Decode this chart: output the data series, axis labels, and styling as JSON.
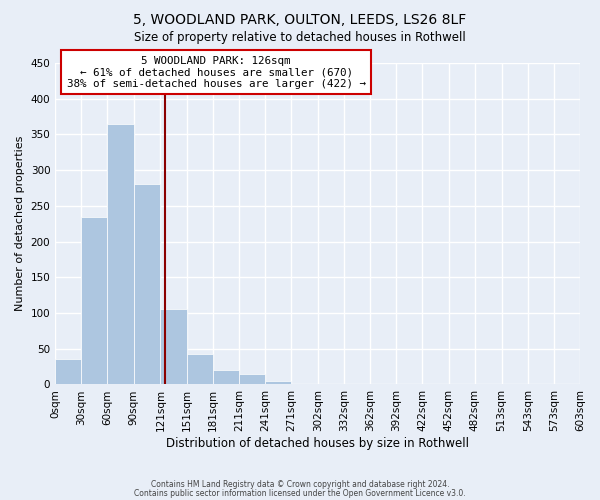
{
  "title": "5, WOODLAND PARK, OULTON, LEEDS, LS26 8LF",
  "subtitle": "Size of property relative to detached houses in Rothwell",
  "xlabel": "Distribution of detached houses by size in Rothwell",
  "ylabel": "Number of detached properties",
  "bin_labels": [
    "0sqm",
    "30sqm",
    "60sqm",
    "90sqm",
    "121sqm",
    "151sqm",
    "181sqm",
    "211sqm",
    "241sqm",
    "271sqm",
    "302sqm",
    "332sqm",
    "362sqm",
    "392sqm",
    "422sqm",
    "452sqm",
    "482sqm",
    "513sqm",
    "543sqm",
    "573sqm",
    "603sqm"
  ],
  "bar_values": [
    35,
    235,
    365,
    280,
    105,
    42,
    20,
    15,
    5,
    0,
    0,
    0,
    0,
    0,
    0,
    0,
    0,
    0,
    0,
    0
  ],
  "bar_color": "#adc6e0",
  "property_line_x": 126,
  "property_line_color": "#8b0000",
  "annotation_line1": "5 WOODLAND PARK: 126sqm",
  "annotation_line2": "← 61% of detached houses are smaller (670)",
  "annotation_line3": "38% of semi-detached houses are larger (422) →",
  "annotation_box_color": "white",
  "annotation_box_edge": "#cc0000",
  "ylim": [
    0,
    450
  ],
  "yticks": [
    0,
    50,
    100,
    150,
    200,
    250,
    300,
    350,
    400,
    450
  ],
  "footer_line1": "Contains HM Land Registry data © Crown copyright and database right 2024.",
  "footer_line2": "Contains public sector information licensed under the Open Government Licence v3.0.",
  "background_color": "#e8eef7",
  "grid_color": "white",
  "bin_starts": [
    0,
    30,
    60,
    90,
    121,
    151,
    181,
    211,
    241,
    271,
    302,
    332,
    362,
    392,
    422,
    452,
    482,
    513,
    543,
    573
  ],
  "xlim_max": 603
}
